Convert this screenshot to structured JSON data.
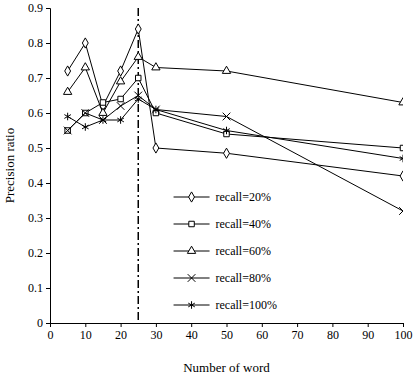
{
  "chart_data": {
    "type": "line",
    "x_label": "Number of word",
    "y_label": "Precision ratio",
    "x": [
      5,
      10,
      15,
      20,
      25,
      30,
      50,
      100
    ],
    "series": [
      {
        "name": "recall=20%",
        "color": "#000000",
        "marker": "diamond",
        "line_style": "solid",
        "values": [
          0.72,
          0.8,
          0.62,
          0.72,
          0.84,
          0.5,
          0.485,
          0.42
        ]
      },
      {
        "name": "recall=40%",
        "color": "#000000",
        "marker": "square",
        "line_style": "solid",
        "values": [
          0.55,
          0.6,
          0.63,
          0.64,
          0.7,
          0.6,
          0.54,
          0.5
        ]
      },
      {
        "name": "recall=60%",
        "color": "#000000",
        "marker": "triangle",
        "line_style": "solid",
        "values": [
          0.66,
          0.73,
          0.6,
          0.69,
          0.76,
          0.73,
          0.72,
          0.63
        ]
      },
      {
        "name": "recall=80%",
        "color": "#000000",
        "marker": "x",
        "line_style": "solid",
        "values": [
          0.55,
          0.6,
          0.58,
          0.62,
          0.65,
          0.61,
          0.59,
          0.32
        ]
      },
      {
        "name": "recall=100%",
        "color": "#000000",
        "marker": "asterisk",
        "line_style": "solid",
        "values": [
          0.59,
          0.56,
          0.58,
          0.58,
          0.64,
          0.61,
          0.55,
          0.47
        ]
      }
    ],
    "reference_x": 25,
    "xlim": [
      0,
      100
    ],
    "xticks": [
      0,
      10,
      20,
      30,
      40,
      50,
      60,
      70,
      80,
      90,
      100
    ],
    "ylim": [
      0,
      0.9
    ],
    "yticks": [
      0,
      0.1,
      0.2,
      0.3,
      0.4,
      0.5,
      0.6,
      0.7,
      0.8,
      0.9
    ],
    "grid": false,
    "legend": "bottom"
  }
}
